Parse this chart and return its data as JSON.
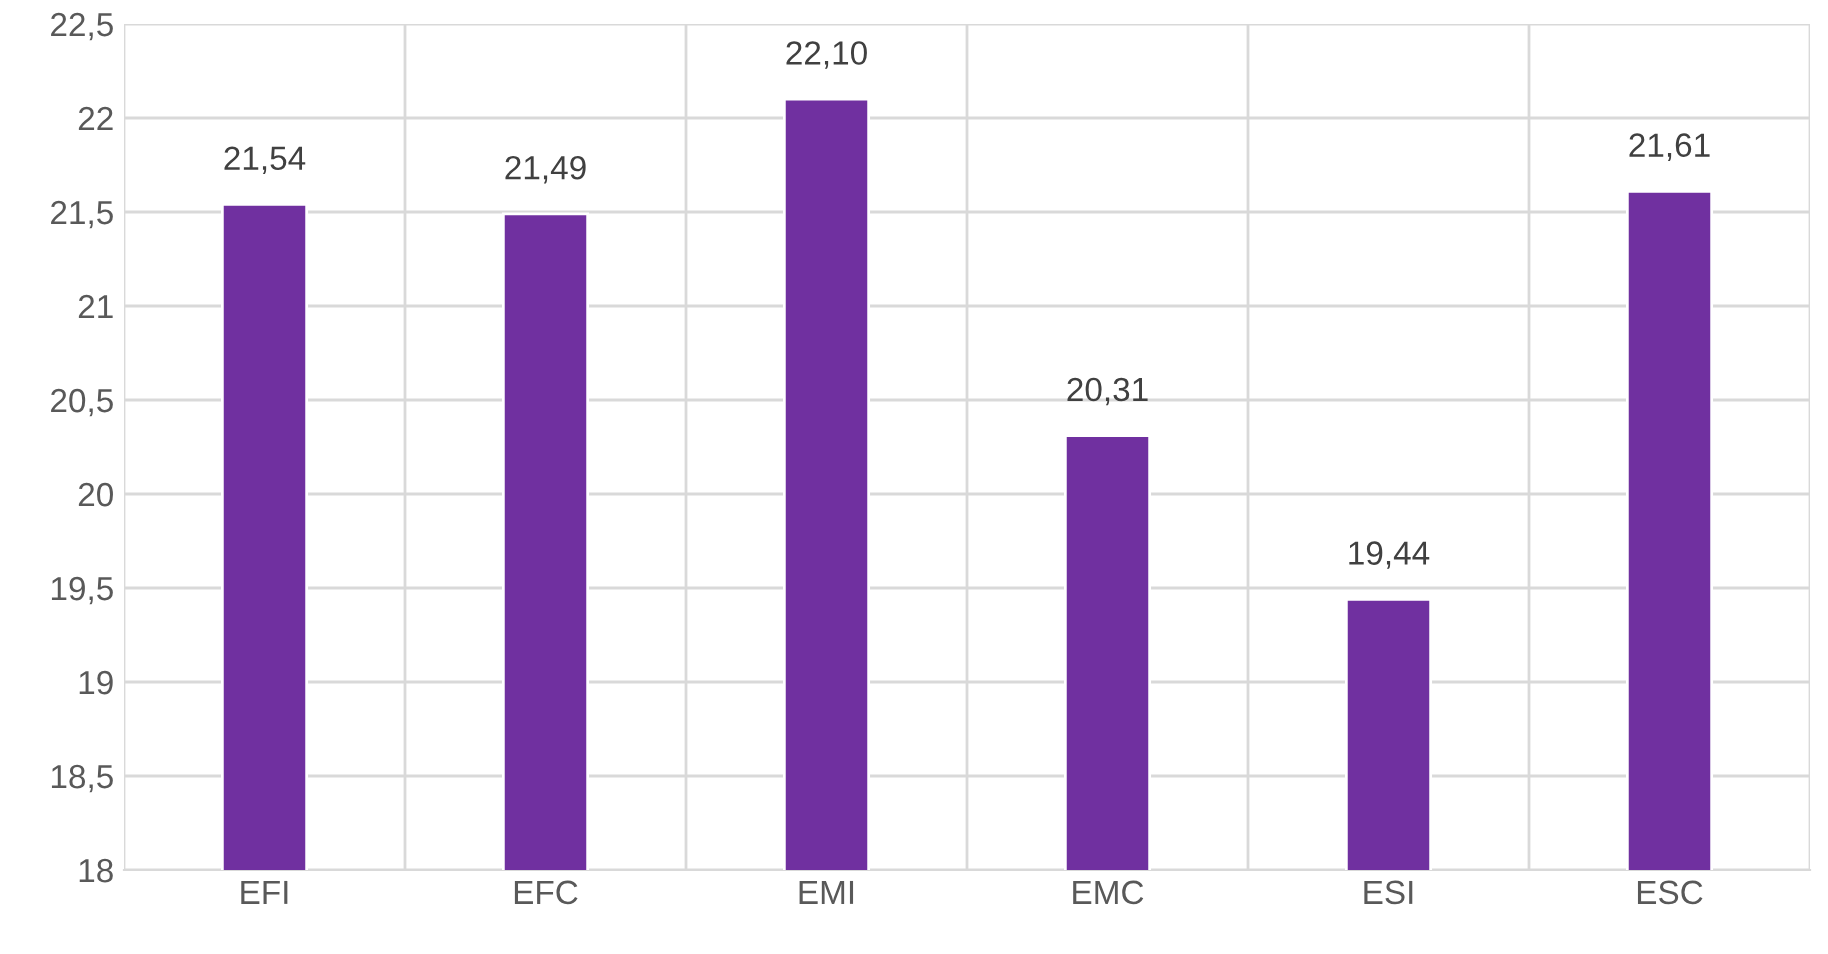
{
  "chart_data": {
    "type": "bar",
    "categories": [
      "EFI",
      "EFC",
      "EMI",
      "EMC",
      "ESI",
      "ESC"
    ],
    "values": [
      21.54,
      21.49,
      22.1,
      20.31,
      19.44,
      21.61
    ],
    "value_labels": [
      "21,54",
      "21,49",
      "22,10",
      "20,31",
      "19,44",
      "21,61"
    ],
    "color": "#7030a0",
    "ylim": [
      18,
      22.5
    ],
    "yticks": [
      18,
      {
        "value": 18.5,
        "label": "18,5"
      },
      19,
      {
        "value": 19.5,
        "label": "19,5"
      },
      20,
      {
        "value": 20.5,
        "label": "20,5"
      },
      21,
      {
        "value": 21.5,
        "label": "21,5"
      },
      22,
      {
        "value": 22.5,
        "label": "22,5"
      }
    ],
    "grid": true,
    "legend": false
  }
}
